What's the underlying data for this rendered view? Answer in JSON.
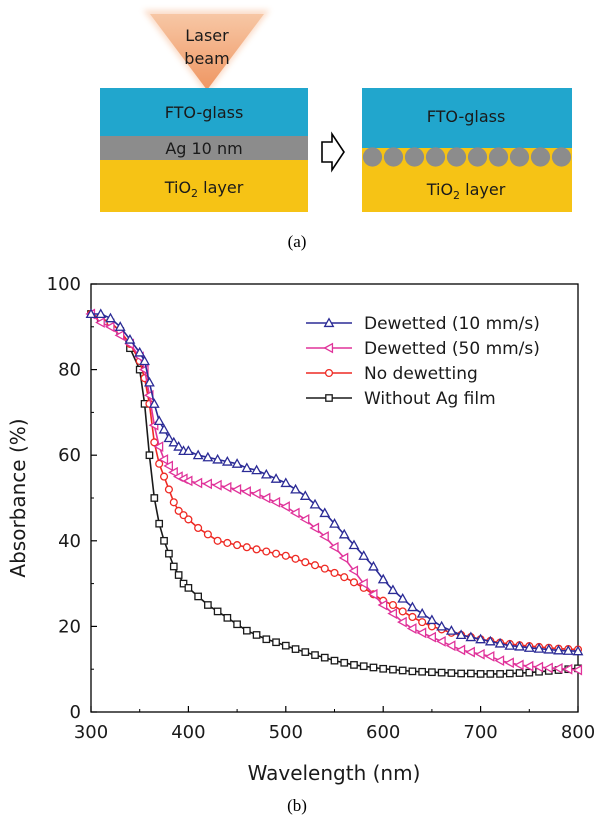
{
  "diagram": {
    "laser_line1": "Laser",
    "laser_line2": "beam",
    "fto": "FTO-glass",
    "ag": "Ag 10 nm",
    "tio2_main": "TiO",
    "tio2_sub": "2",
    "tio2_rest": " layer",
    "caption": "(a)",
    "colors": {
      "fto": "#21a6cd",
      "ag": "#8c8c8c",
      "tio2": "#f6c315",
      "laser": "#f0a270",
      "particle": "#8c8c8c"
    },
    "particle_count": 10
  },
  "chart_caption": "(b)",
  "chart_data": {
    "type": "line",
    "xlabel": "Wavelength (nm)",
    "ylabel": "Absorbance (%)",
    "xlim": [
      300,
      800
    ],
    "ylim": [
      0,
      100
    ],
    "xticks": [
      300,
      400,
      500,
      600,
      700,
      800
    ],
    "yticks": [
      0,
      20,
      40,
      60,
      80,
      100
    ],
    "grid": false,
    "legend_position": "top-right",
    "x": [
      300,
      310,
      320,
      330,
      340,
      350,
      355,
      360,
      365,
      370,
      375,
      380,
      385,
      390,
      395,
      400,
      410,
      420,
      430,
      440,
      450,
      460,
      470,
      480,
      490,
      500,
      510,
      520,
      530,
      540,
      550,
      560,
      570,
      580,
      590,
      600,
      610,
      620,
      630,
      640,
      650,
      660,
      670,
      680,
      690,
      700,
      710,
      720,
      730,
      740,
      750,
      760,
      770,
      780,
      790,
      800
    ],
    "series": [
      {
        "name": "Dewetted (10 mm/s)",
        "color": "#2b2b96",
        "marker": "triangle-up",
        "values": [
          93,
          93,
          92,
          90,
          87,
          84,
          82,
          77,
          72,
          68,
          66,
          64,
          63,
          62,
          61,
          61,
          60,
          59.5,
          59,
          58.5,
          58,
          57,
          56.5,
          55.5,
          54.5,
          53.5,
          52,
          50.5,
          48.5,
          46.5,
          44,
          41.5,
          39,
          36.5,
          34,
          31,
          28.5,
          26.5,
          24.5,
          23,
          21.5,
          20,
          19,
          18,
          17.5,
          17,
          16.5,
          16,
          15.5,
          15.3,
          15,
          14.8,
          14.6,
          14.4,
          14.3,
          14.2
        ]
      },
      {
        "name": "Dewetted (50 mm/s)",
        "color": "#e0339a",
        "marker": "triangle-left",
        "values": [
          93,
          91,
          90,
          88,
          86,
          83,
          80,
          74,
          67,
          62,
          59,
          57.5,
          56,
          55,
          54.5,
          54,
          53.5,
          53.3,
          53,
          52.5,
          52,
          51.5,
          51,
          50,
          49,
          48,
          46.5,
          45,
          43,
          41,
          38.5,
          36,
          33,
          30,
          27.5,
          25,
          23,
          21,
          19.5,
          18.5,
          17.5,
          16.5,
          15.5,
          14.5,
          14,
          13.5,
          13,
          12,
          11.5,
          11,
          10.7,
          10.5,
          10.3,
          10.2,
          10,
          9.8
        ]
      },
      {
        "name": "No dewetting",
        "color": "#ee2a24",
        "marker": "circle",
        "values": [
          93,
          92,
          91,
          89,
          86,
          82,
          78,
          72,
          63,
          58,
          55,
          52,
          49,
          47,
          46,
          45,
          43,
          41.5,
          40,
          39.5,
          39,
          38.5,
          38,
          37.5,
          37,
          36.5,
          35.8,
          35,
          34.3,
          33.5,
          32.5,
          31.5,
          30.3,
          29,
          27.5,
          26,
          25,
          23.5,
          22.2,
          21,
          20,
          19.3,
          18.5,
          18,
          17.5,
          17,
          16.6,
          16.2,
          15.9,
          15.6,
          15.4,
          15.2,
          15,
          14.8,
          14.7,
          14.6
        ]
      },
      {
        "name": "Without Ag film",
        "color": "#1a1a1a",
        "marker": "square",
        "values": [
          93,
          92,
          91,
          89,
          85,
          80,
          72,
          60,
          50,
          44,
          40,
          37,
          34,
          32,
          30,
          29,
          27,
          25,
          23.5,
          22,
          20.5,
          19,
          18,
          17,
          16.3,
          15.5,
          14.7,
          14,
          13.3,
          12.7,
          12,
          11.5,
          11,
          10.7,
          10.4,
          10.1,
          9.9,
          9.7,
          9.5,
          9.4,
          9.3,
          9.2,
          9.1,
          9.0,
          9.0,
          8.9,
          8.9,
          8.9,
          9.0,
          9.1,
          9.2,
          9.4,
          9.6,
          9.8,
          10.0,
          10.2
        ]
      }
    ]
  }
}
